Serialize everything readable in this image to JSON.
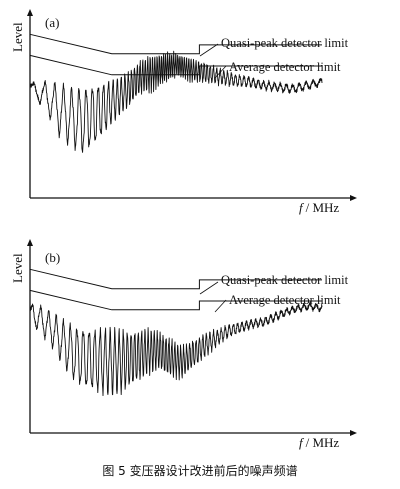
{
  "figure": {
    "caption": "图 5   变压器设计改进前后的噪声频谱"
  },
  "chart_data": [
    {
      "type": "line",
      "panel_label": "(a)",
      "xlabel_italic": "f",
      "xlabel_rest": "/ MHz",
      "ylabel": "Level",
      "axis_ranges_note": "no tick values printed",
      "legend_placement": "annotations at upper-right, each pointing to its limit line",
      "series": [
        {
          "name": "Quasi-peak detector limit",
          "kind": "limit",
          "x": [
            0.0,
            0.28,
            0.58,
            0.58,
            1.0
          ],
          "y": [
            0.93,
            0.82,
            0.82,
            0.87,
            0.87
          ]
        },
        {
          "name": "Average detector limit",
          "kind": "limit",
          "x": [
            0.0,
            0.28,
            0.58,
            0.58,
            1.0
          ],
          "y": [
            0.81,
            0.7,
            0.7,
            0.75,
            0.75
          ]
        },
        {
          "name": "",
          "kind": "spectrum",
          "x": [
            0.0,
            0.03,
            0.06,
            0.1,
            0.14,
            0.18,
            0.22,
            0.26,
            0.3,
            0.34,
            0.38,
            0.42,
            0.46,
            0.5,
            0.55,
            0.6,
            0.65,
            0.7,
            0.75,
            0.8,
            0.85,
            0.9,
            0.95,
            1.0
          ],
          "y": [
            0.63,
            0.6,
            0.57,
            0.5,
            0.46,
            0.44,
            0.47,
            0.52,
            0.57,
            0.62,
            0.69,
            0.71,
            0.74,
            0.76,
            0.73,
            0.71,
            0.69,
            0.67,
            0.66,
            0.64,
            0.63,
            0.62,
            0.64,
            0.66
          ],
          "osc_amp": [
            0.02,
            0.05,
            0.08,
            0.13,
            0.15,
            0.17,
            0.16,
            0.13,
            0.1,
            0.09,
            0.09,
            0.09,
            0.08,
            0.06,
            0.06,
            0.05,
            0.04,
            0.03,
            0.025,
            0.02,
            0.02,
            0.02,
            0.02,
            0.015
          ],
          "osc_period": [
            0.045,
            0.04,
            0.035,
            0.03,
            0.027,
            0.024,
            0.02,
            0.017,
            0.014,
            0.011,
            0.009,
            0.008,
            0.007,
            0.007,
            0.008,
            0.01,
            0.012,
            0.014,
            0.016,
            0.018,
            0.02,
            0.022,
            0.024,
            0.026
          ]
        }
      ]
    },
    {
      "type": "line",
      "panel_label": "(b)",
      "xlabel_italic": "f",
      "xlabel_rest": "/ MHz",
      "ylabel": "Level",
      "axis_ranges_note": "no tick values printed",
      "legend_placement": "annotations at upper-right, each pointing to its limit line",
      "series": [
        {
          "name": "Quasi-peak detector limit",
          "kind": "limit",
          "x": [
            0.0,
            0.28,
            0.58,
            0.58,
            1.0
          ],
          "y": [
            0.93,
            0.82,
            0.82,
            0.87,
            0.87
          ]
        },
        {
          "name": "Average detector limit",
          "kind": "limit",
          "x": [
            0.0,
            0.28,
            0.58,
            0.58,
            1.0
          ],
          "y": [
            0.81,
            0.7,
            0.7,
            0.75,
            0.75
          ]
        },
        {
          "name": "",
          "kind": "spectrum",
          "x": [
            0.0,
            0.04,
            0.08,
            0.12,
            0.16,
            0.2,
            0.24,
            0.28,
            0.32,
            0.36,
            0.4,
            0.44,
            0.48,
            0.52,
            0.56,
            0.6,
            0.64,
            0.68,
            0.72,
            0.76,
            0.8,
            0.84,
            0.88,
            0.92,
            0.96,
            1.0
          ],
          "y": [
            0.68,
            0.64,
            0.58,
            0.5,
            0.44,
            0.42,
            0.41,
            0.4,
            0.41,
            0.43,
            0.46,
            0.47,
            0.43,
            0.4,
            0.45,
            0.5,
            0.54,
            0.58,
            0.6,
            0.62,
            0.63,
            0.66,
            0.69,
            0.71,
            0.72,
            0.71
          ],
          "osc_amp": [
            0.05,
            0.07,
            0.09,
            0.12,
            0.15,
            0.16,
            0.17,
            0.17,
            0.16,
            0.14,
            0.12,
            0.1,
            0.1,
            0.08,
            0.07,
            0.06,
            0.04,
            0.03,
            0.025,
            0.02,
            0.02,
            0.02,
            0.015,
            0.015,
            0.015,
            0.015
          ],
          "osc_period": [
            0.03,
            0.028,
            0.026,
            0.024,
            0.022,
            0.02,
            0.018,
            0.016,
            0.014,
            0.012,
            0.011,
            0.01,
            0.01,
            0.01,
            0.011,
            0.012,
            0.013,
            0.014,
            0.015,
            0.016,
            0.017,
            0.018,
            0.019,
            0.02,
            0.021,
            0.022
          ]
        }
      ]
    }
  ]
}
